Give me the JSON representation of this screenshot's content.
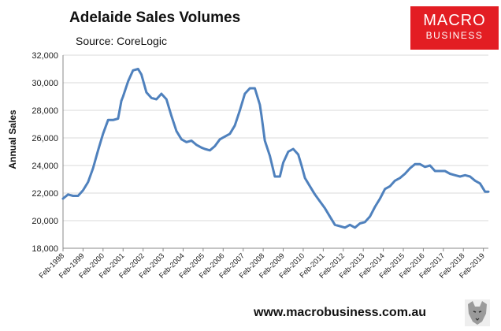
{
  "header": {
    "title": "Adelaide Sales Volumes",
    "source": "Source: CoreLogic"
  },
  "logo": {
    "line1": "MACRO",
    "line2": "BUSINESS",
    "color": "#e31d23"
  },
  "footer": {
    "url": "www.macrobusiness.com.au"
  },
  "chart_data": {
    "type": "line",
    "title": "Adelaide Sales Volumes",
    "subtitle": "Source: CoreLogic",
    "xlabel": "",
    "ylabel": "Annual Sales",
    "ylim": [
      18000,
      32000
    ],
    "yticks": [
      18000,
      20000,
      22000,
      24000,
      26000,
      28000,
      30000,
      32000
    ],
    "ytick_labels": [
      "18,000",
      "20,000",
      "22,000",
      "24,000",
      "26,000",
      "28,000",
      "30,000",
      "32,000"
    ],
    "xticks": [
      "Feb-1998",
      "Feb-1999",
      "Feb-2000",
      "Feb-2001",
      "Feb-2002",
      "Feb-2003",
      "Feb-2004",
      "Feb-2005",
      "Feb-2006",
      "Feb-2007",
      "Feb-2008",
      "Feb-2009",
      "Feb-2010",
      "Feb-2011",
      "Feb-2012",
      "Feb-2013",
      "Feb-2014",
      "Feb-2015",
      "Feb-2016",
      "Feb-2017",
      "Feb-2018",
      "Feb-2019"
    ],
    "grid": "horizontal",
    "color": "#4f81bd",
    "series": [
      {
        "x": [
          "1998-02",
          "1998-05",
          "1998-08",
          "1998-11",
          "1999-02",
          "1999-05",
          "1999-08",
          "1999-11",
          "2000-02",
          "2000-05",
          "2000-08",
          "2000-11",
          "2001-01",
          "2001-02",
          "2001-05",
          "2001-08",
          "2001-11",
          "2002-01",
          "2002-04",
          "2002-07",
          "2002-10",
          "2003-01",
          "2003-04",
          "2003-07",
          "2003-10",
          "2004-01",
          "2004-04",
          "2004-07",
          "2004-10",
          "2005-01",
          "2005-03",
          "2005-06",
          "2005-09",
          "2005-12",
          "2006-03",
          "2006-06",
          "2006-09",
          "2006-12",
          "2007-03",
          "2007-06",
          "2007-09",
          "2007-12",
          "2008-01",
          "2008-03",
          "2008-06",
          "2008-09",
          "2008-12",
          "2009-02",
          "2009-05",
          "2009-08",
          "2009-11",
          "2010-01",
          "2010-03",
          "2010-06",
          "2010-09",
          "2010-12",
          "2011-03",
          "2011-06",
          "2011-09",
          "2011-12",
          "2012-03",
          "2012-06",
          "2012-09",
          "2012-12",
          "2013-03",
          "2013-06",
          "2013-09",
          "2013-12",
          "2014-03",
          "2014-06",
          "2014-09",
          "2014-12",
          "2015-03",
          "2015-06",
          "2015-09",
          "2015-12",
          "2016-03",
          "2016-06",
          "2016-09",
          "2016-12",
          "2017-03",
          "2017-06",
          "2017-09",
          "2017-12",
          "2018-03",
          "2018-06",
          "2018-09",
          "2018-12",
          "2019-03",
          "2019-05"
        ],
        "values": [
          21600,
          21900,
          21800,
          21800,
          22200,
          22800,
          23800,
          25100,
          26300,
          27300,
          27300,
          27400,
          28700,
          29000,
          30100,
          30900,
          31000,
          30600,
          29300,
          28900,
          28800,
          29200,
          28800,
          27600,
          26500,
          25900,
          25700,
          25800,
          25500,
          25300,
          25200,
          25100,
          25400,
          25900,
          26100,
          26300,
          26900,
          28000,
          29200,
          29600,
          29600,
          28400,
          27600,
          25800,
          24700,
          23200,
          23200,
          24200,
          25000,
          25200,
          24800,
          24000,
          23100,
          22500,
          21900,
          21400,
          20900,
          20300,
          19700,
          19600,
          19500,
          19700,
          19500,
          19800,
          19900,
          20300,
          21000,
          21600,
          22300,
          22500,
          22900,
          23100,
          23400,
          23800,
          24100,
          24100,
          23900,
          24000,
          23600,
          23600,
          23600,
          23400,
          23300,
          23200,
          23300,
          23200,
          22900,
          22700,
          22100,
          22100
        ]
      }
    ]
  }
}
